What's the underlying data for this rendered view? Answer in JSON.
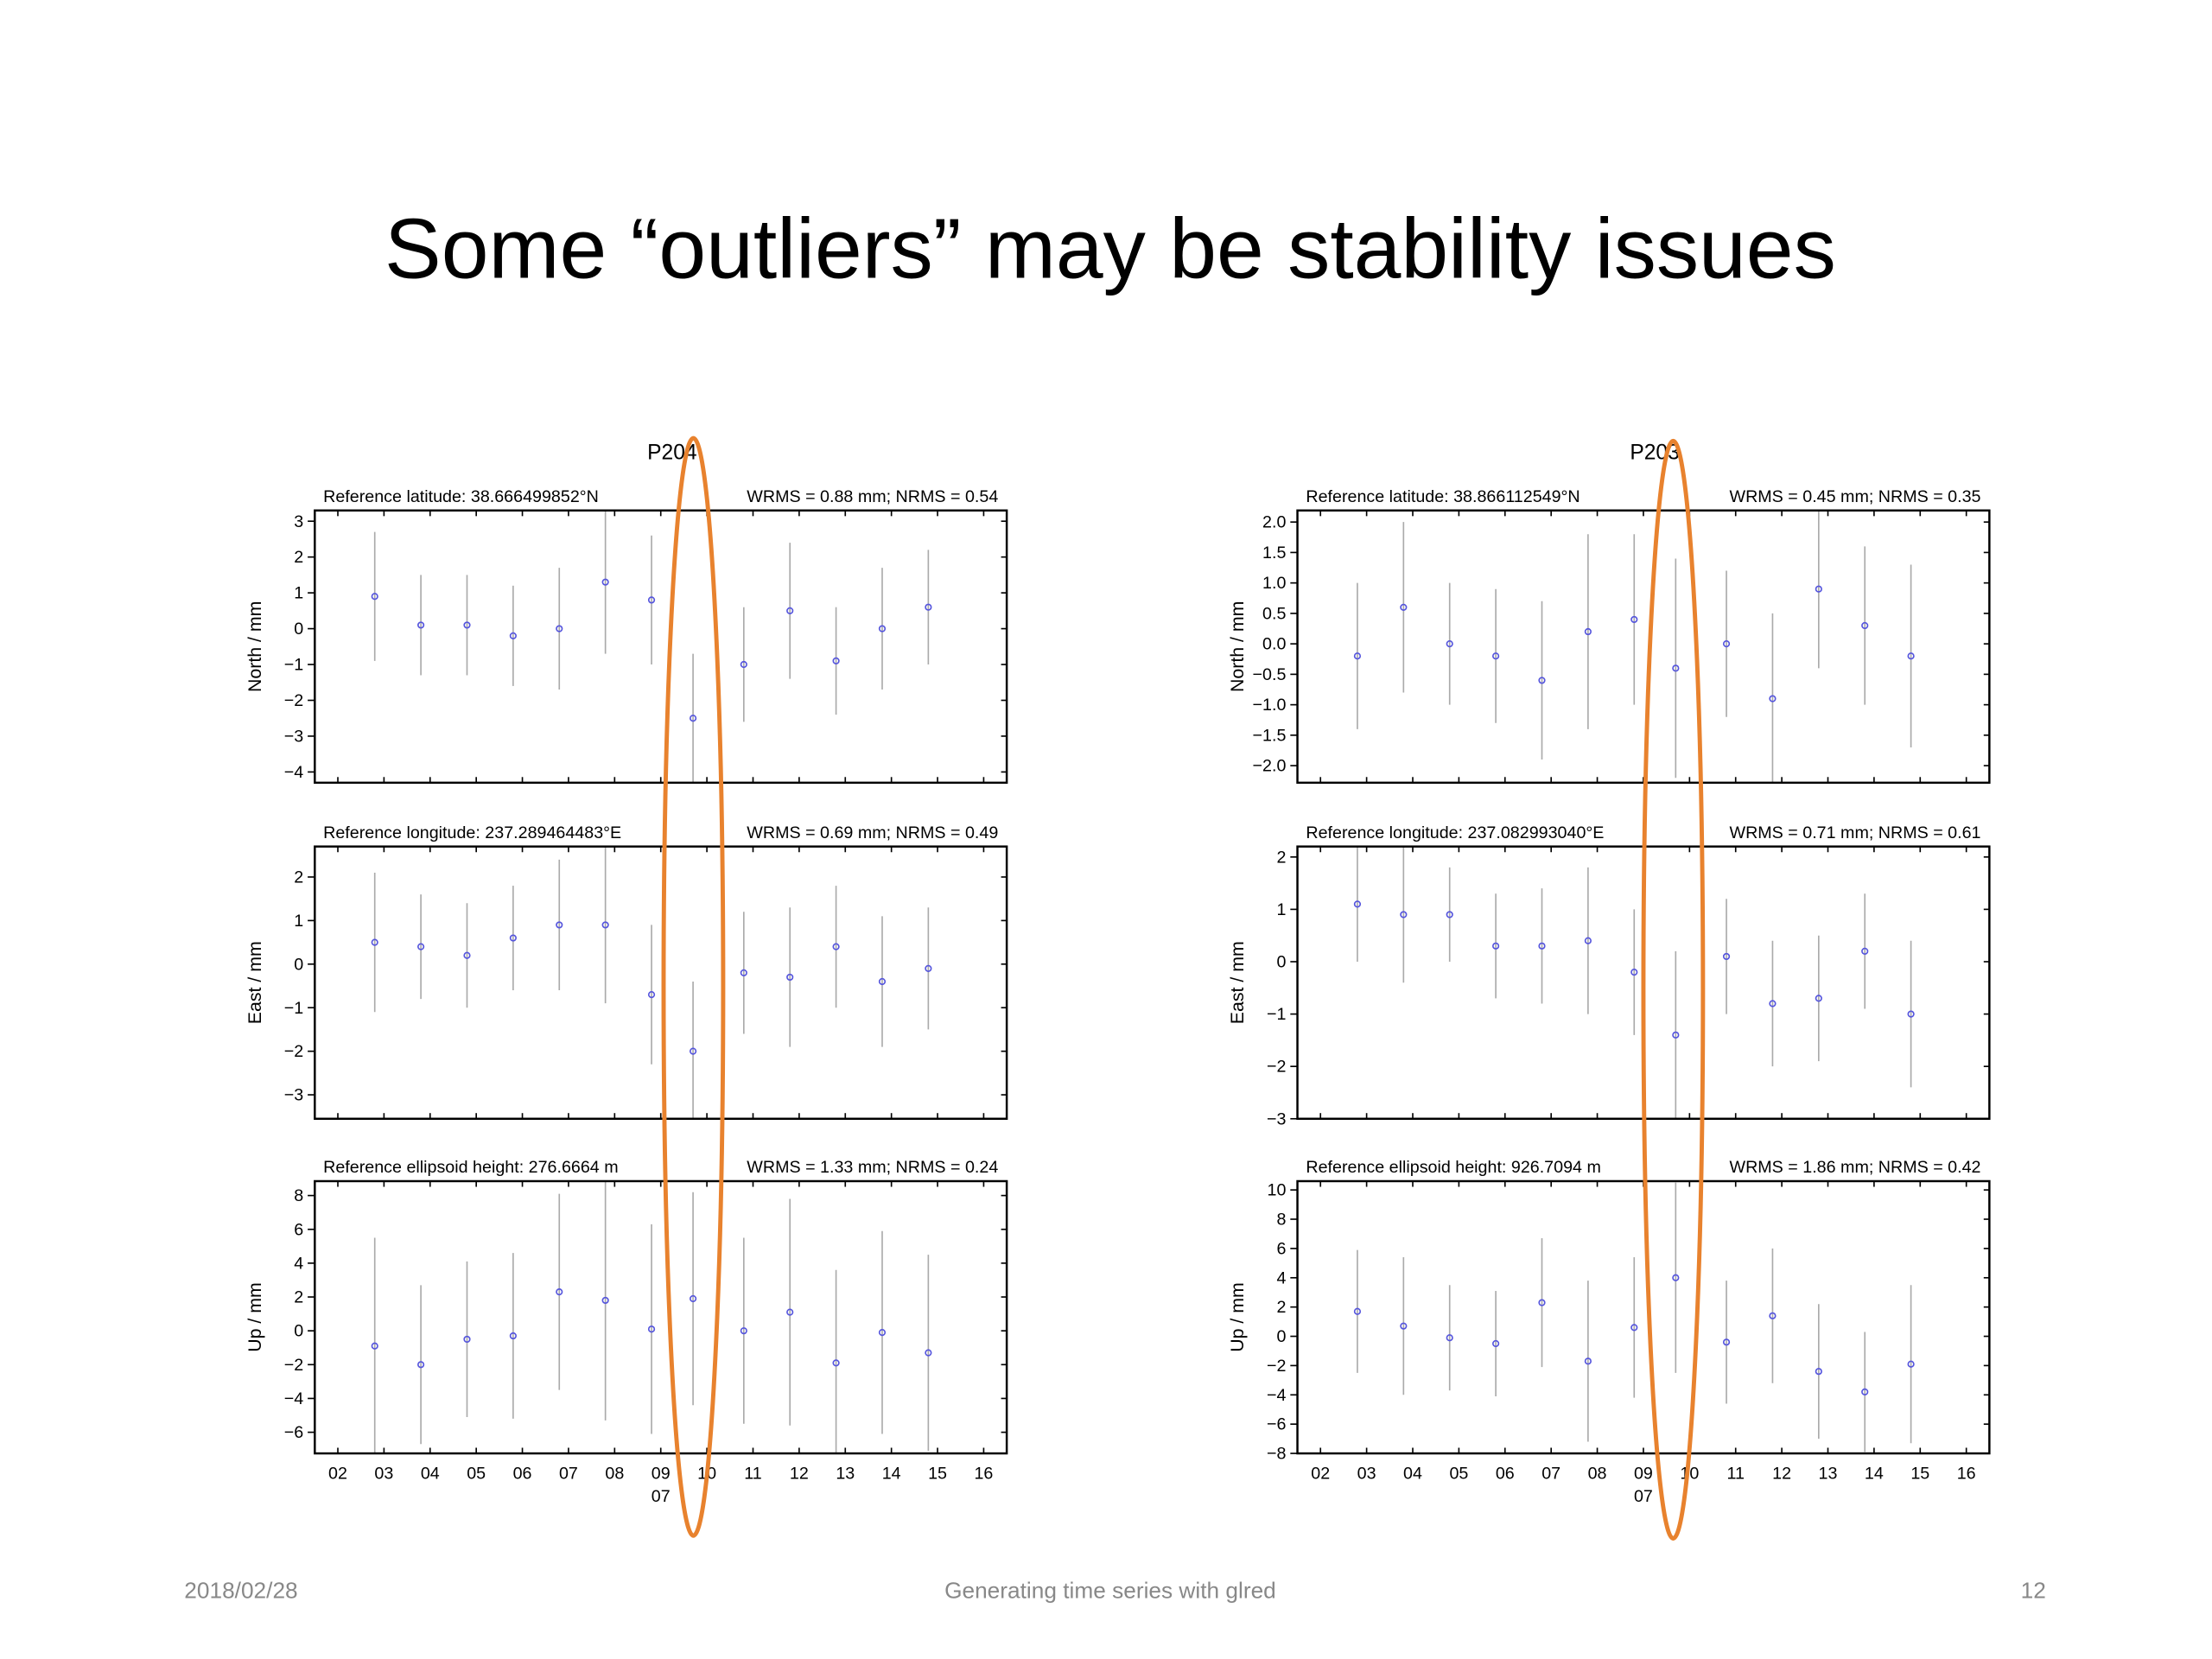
{
  "title": "Some “outliers” may be stability issues",
  "footer": {
    "date": "2018/02/28",
    "center": "Generating time series with glred",
    "page": "12"
  },
  "chart_data": [
    {
      "type": "errorbar",
      "title": "P204",
      "color": "#5555dd",
      "bar_color": "#aaaaaa",
      "x": [
        2.8,
        3.8,
        4.8,
        5.8,
        6.8,
        7.8,
        8.8,
        9.7,
        10.8,
        11.8,
        12.8,
        13.8,
        14.8
      ],
      "xlim": [
        1.5,
        16.5
      ],
      "xticks": [
        {
          "value": 2,
          "label": "02"
        },
        {
          "value": 3,
          "label": "03"
        },
        {
          "value": 4,
          "label": "04"
        },
        {
          "value": 5,
          "label": "05"
        },
        {
          "value": 6,
          "label": "06"
        },
        {
          "value": 7,
          "label": "07"
        },
        {
          "value": 8,
          "label": "08"
        },
        {
          "value": 9,
          "label": "09"
        },
        {
          "value": 10,
          "label": "10"
        },
        {
          "value": 11,
          "label": "11"
        },
        {
          "value": 12,
          "label": "12"
        },
        {
          "value": 13,
          "label": "13"
        },
        {
          "value": 14,
          "label": "14"
        },
        {
          "value": 15,
          "label": "15"
        },
        {
          "value": 16,
          "label": "16"
        }
      ],
      "month_label": {
        "value": 9,
        "label": "07"
      },
      "panels": [
        {
          "left": "Reference latitude: 38.666499852°N",
          "right": "WRMS = 0.88 mm; NRMS = 0.54",
          "ylabel": "North / mm",
          "ylim": [
            -4.3,
            3.3
          ],
          "yticks": [
            {
              "value": -4,
              "label": "−4"
            },
            {
              "value": -3,
              "label": "−3"
            },
            {
              "value": -2,
              "label": "−2"
            },
            {
              "value": -1,
              "label": "−1"
            },
            0,
            1,
            2,
            3
          ],
          "values": [
            0.9,
            0.1,
            0.1,
            -0.2,
            0.0,
            1.3,
            0.8,
            -2.5,
            -1.0,
            0.5,
            -0.9,
            0.0,
            0.6
          ],
          "errors": [
            1.8,
            1.4,
            1.4,
            1.4,
            1.7,
            2.0,
            1.8,
            1.8,
            1.6,
            1.9,
            1.5,
            1.7,
            1.6
          ]
        },
        {
          "left": "Reference longitude: 237.289464483°E",
          "right": "WRMS = 0.69 mm; NRMS = 0.49",
          "ylabel": "East / mm",
          "ylim": [
            -3.55,
            2.7
          ],
          "yticks": [
            {
              "value": -3,
              "label": "−3"
            },
            {
              "value": -2,
              "label": "−2"
            },
            {
              "value": -1,
              "label": "−1"
            },
            0,
            1,
            2
          ],
          "values": [
            0.5,
            0.4,
            0.2,
            0.6,
            0.9,
            0.9,
            -0.7,
            -2.0,
            -0.2,
            -0.3,
            0.4,
            -0.4,
            -0.1
          ],
          "errors": [
            1.6,
            1.2,
            1.2,
            1.2,
            1.5,
            1.8,
            1.6,
            1.6,
            1.4,
            1.6,
            1.4,
            1.5,
            1.4
          ]
        },
        {
          "left": "Reference ellipsoid height: 276.6664 m",
          "right": "WRMS = 1.33 mm; NRMS = 0.24",
          "ylabel": "Up / mm",
          "ylim": [
            -7.25,
            8.85
          ],
          "yticks": [
            {
              "value": -6,
              "label": "−6"
            },
            {
              "value": -4,
              "label": "−4"
            },
            {
              "value": -2,
              "label": "−2"
            },
            0,
            2,
            4,
            6,
            8
          ],
          "values": [
            -0.9,
            -2.0,
            -0.5,
            -0.3,
            2.3,
            1.8,
            0.1,
            1.9,
            0.0,
            1.1,
            -1.9,
            -0.1,
            -1.3
          ],
          "errors": [
            6.4,
            4.7,
            4.6,
            4.9,
            5.8,
            7.1,
            6.2,
            6.3,
            5.5,
            6.7,
            5.5,
            6.0,
            5.8
          ]
        }
      ]
    },
    {
      "type": "errorbar",
      "title": "P203",
      "color": "#5555dd",
      "bar_color": "#aaaaaa",
      "x": [
        2.8,
        3.8,
        4.8,
        5.8,
        6.8,
        7.8,
        8.8,
        9.7,
        10.8,
        11.8,
        12.8,
        13.8,
        14.8
      ],
      "xlim": [
        1.5,
        16.5
      ],
      "xticks": [
        {
          "value": 2,
          "label": "02"
        },
        {
          "value": 3,
          "label": "03"
        },
        {
          "value": 4,
          "label": "04"
        },
        {
          "value": 5,
          "label": "05"
        },
        {
          "value": 6,
          "label": "06"
        },
        {
          "value": 7,
          "label": "07"
        },
        {
          "value": 8,
          "label": "08"
        },
        {
          "value": 9,
          "label": "09"
        },
        {
          "value": 10,
          "label": "10"
        },
        {
          "value": 11,
          "label": "11"
        },
        {
          "value": 12,
          "label": "12"
        },
        {
          "value": 13,
          "label": "13"
        },
        {
          "value": 14,
          "label": "14"
        },
        {
          "value": 15,
          "label": "15"
        },
        {
          "value": 16,
          "label": "16"
        }
      ],
      "month_label": {
        "value": 9,
        "label": "07"
      },
      "panels": [
        {
          "left": "Reference latitude: 38.866112549°N",
          "right": "WRMS = 0.45 mm; NRMS = 0.35",
          "ylabel": "North / mm",
          "ylim": [
            -2.28,
            2.19
          ],
          "yticks": [
            {
              "value": -2,
              "label": "−2.0"
            },
            {
              "value": -1.5,
              "label": "−1.5"
            },
            {
              "value": -1,
              "label": "−1.0"
            },
            {
              "value": -0.5,
              "label": "−0.5"
            },
            {
              "value": 0,
              "label": "0.0"
            },
            0.5,
            {
              "value": 1,
              "label": "1.0"
            },
            1.5,
            {
              "value": 2,
              "label": "2.0"
            }
          ],
          "values": [
            -0.2,
            0.6,
            0.0,
            -0.2,
            -0.6,
            0.2,
            0.4,
            -0.4,
            0.0,
            -0.9,
            0.9,
            0.3,
            -0.2
          ],
          "errors": [
            1.2,
            1.4,
            1.0,
            1.1,
            1.3,
            1.6,
            1.4,
            1.8,
            1.2,
            1.4,
            1.3,
            1.3,
            1.5
          ]
        },
        {
          "left": "Reference longitude: 237.082993040°E",
          "right": "WRMS = 0.71 mm; NRMS = 0.61",
          "ylabel": "East / mm",
          "ylim": [
            -3,
            2.2
          ],
          "yticks": [
            {
              "value": -3,
              "label": "−3"
            },
            {
              "value": -2,
              "label": "−2"
            },
            {
              "value": -1,
              "label": "−1"
            },
            0,
            1,
            2
          ],
          "values": [
            1.1,
            0.9,
            0.9,
            0.3,
            0.3,
            0.4,
            -0.2,
            -1.4,
            0.1,
            -0.8,
            -0.7,
            0.2,
            -1.0
          ],
          "errors": [
            1.1,
            1.3,
            0.9,
            1.0,
            1.1,
            1.4,
            1.2,
            1.6,
            1.1,
            1.2,
            1.2,
            1.1,
            1.4
          ]
        },
        {
          "left": "Reference ellipsoid height: 926.7094 m",
          "right": "WRMS = 1.86 mm; NRMS = 0.42",
          "ylabel": "Up / mm",
          "ylim": [
            -8,
            10.6
          ],
          "yticks": [
            {
              "value": -8,
              "label": "−8"
            },
            {
              "value": -6,
              "label": "−6"
            },
            {
              "value": -4,
              "label": "−4"
            },
            {
              "value": -2,
              "label": "−2"
            },
            0,
            2,
            4,
            6,
            8,
            10
          ],
          "values": [
            1.7,
            0.7,
            -0.1,
            -0.5,
            2.3,
            -1.7,
            0.6,
            4.0,
            -0.4,
            1.4,
            -2.4,
            -3.8,
            -1.9
          ],
          "errors": [
            4.2,
            4.7,
            3.6,
            3.6,
            4.4,
            5.5,
            4.8,
            6.5,
            4.2,
            4.6,
            4.6,
            4.1,
            5.4
          ]
        }
      ]
    }
  ]
}
